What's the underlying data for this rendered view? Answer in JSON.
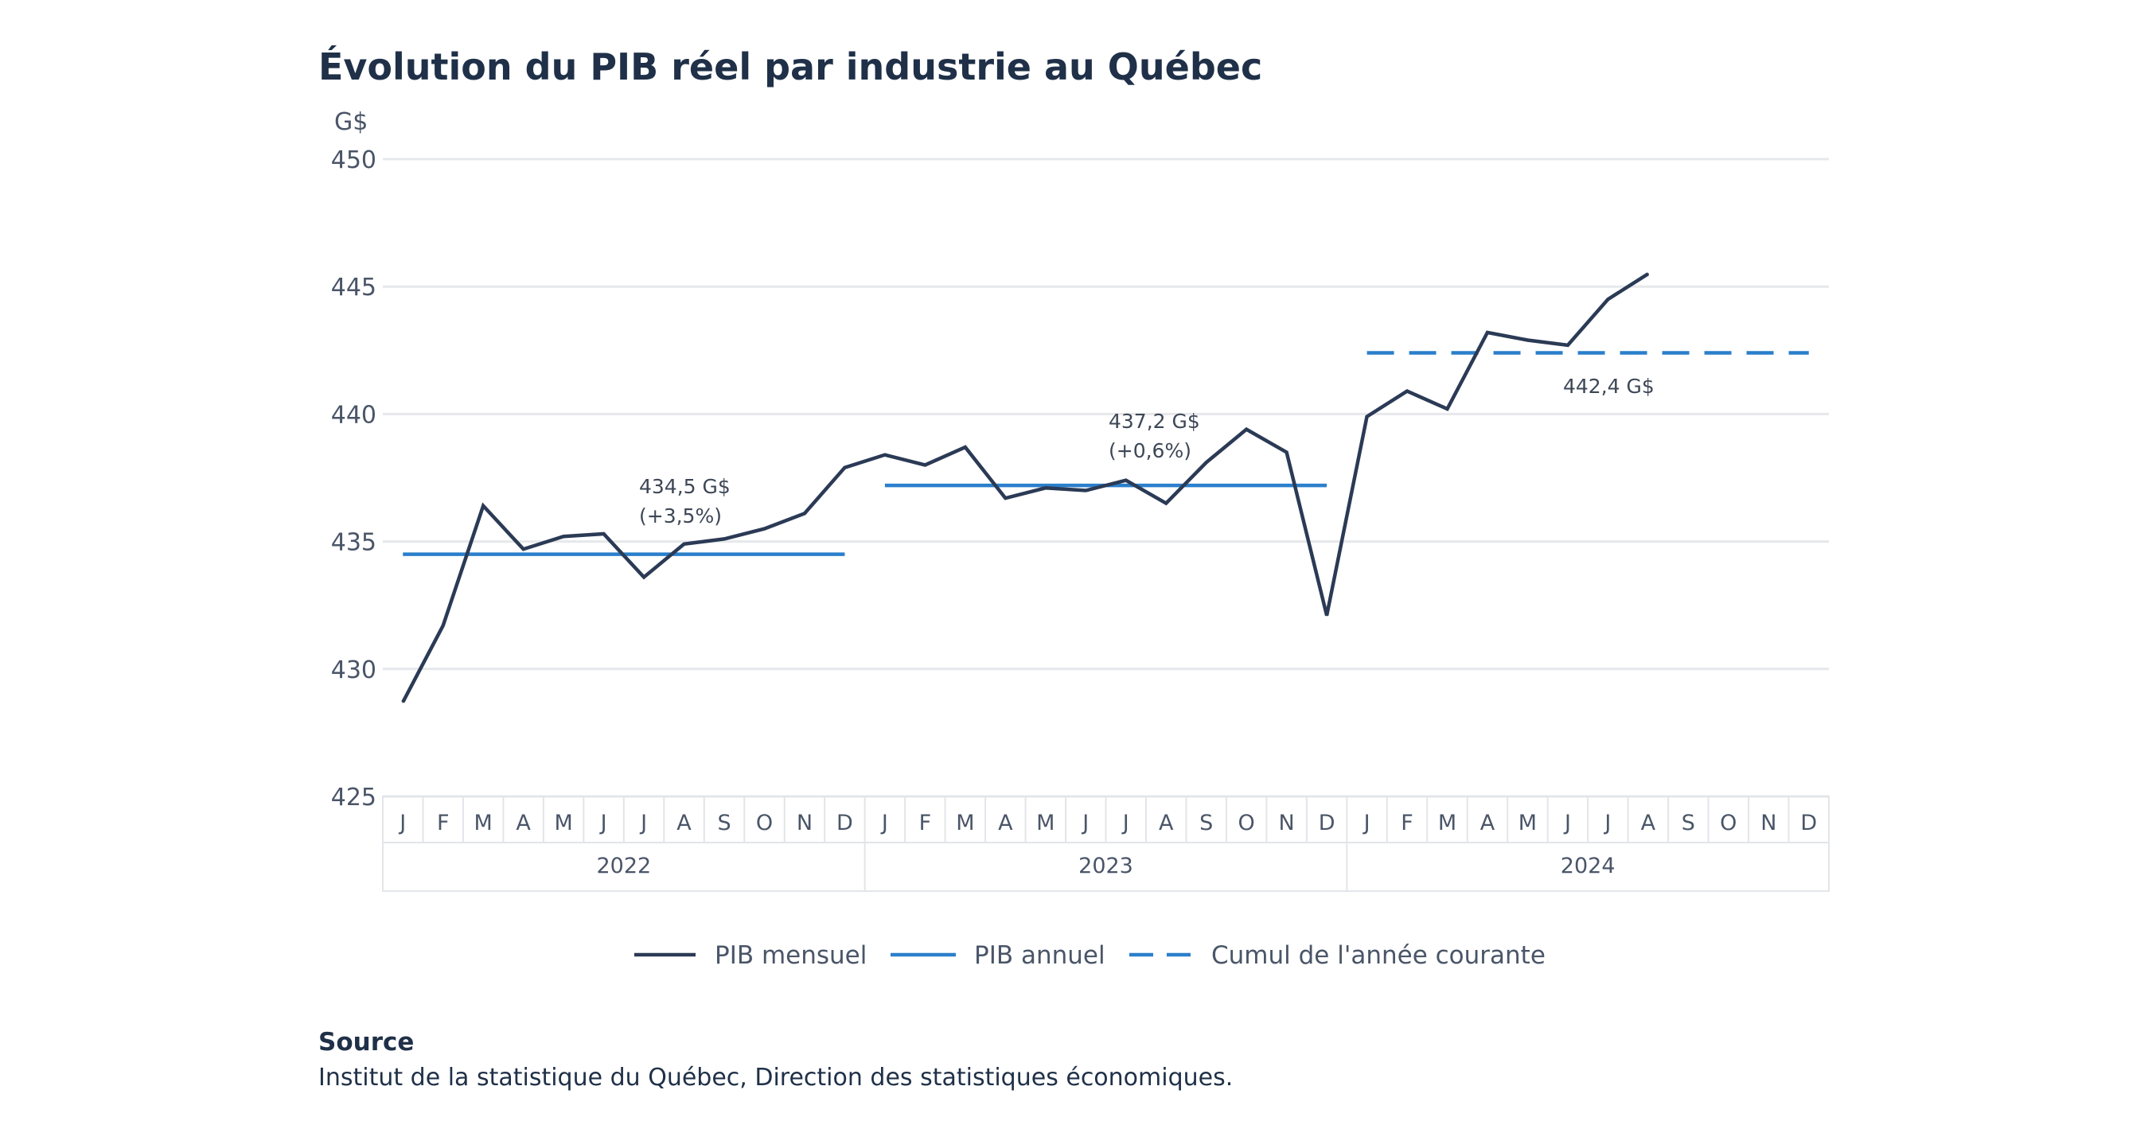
{
  "chart_data": {
    "type": "line",
    "title": "Évolution du PIB réel par industrie au Québec",
    "ylabel": "G$",
    "ylim": [
      425,
      450
    ],
    "yticks": [
      "425",
      "430",
      "435",
      "440",
      "445",
      "450"
    ],
    "grid": true,
    "legend_placement": "bottom",
    "months": [
      "J",
      "F",
      "M",
      "A",
      "M",
      "J",
      "J",
      "A",
      "S",
      "O",
      "N",
      "D"
    ],
    "years": [
      "2022",
      "2023",
      "2024"
    ],
    "series": [
      {
        "name": "PIB mensuel",
        "color": "#2b3a55",
        "style": "solid",
        "values": [
          428.7,
          431.7,
          436.4,
          434.7,
          435.2,
          435.3,
          433.6,
          434.9,
          435.1,
          435.5,
          436.1,
          437.9,
          438.4,
          438.0,
          438.7,
          436.7,
          437.1,
          437.0,
          437.4,
          436.5,
          438.1,
          439.4,
          438.5,
          432.1,
          439.9,
          440.9,
          440.2,
          443.2,
          442.9,
          442.7,
          444.5,
          445.5
        ]
      },
      {
        "name": "PIB annuel",
        "color": "#2b7fcb",
        "style": "solid",
        "values_by_year": [
          434.5,
          437.2
        ]
      },
      {
        "name": "Cumul de l'année courante",
        "color": "#2b7fcb",
        "style": "dashed",
        "values_by_year": [
          null,
          null,
          442.4
        ]
      }
    ],
    "annotations": [
      {
        "year": "2022",
        "lines": [
          "434,5 G$",
          "(+3,5%)"
        ]
      },
      {
        "year": "2023",
        "lines": [
          "437,2 G$",
          "(+0,6%)"
        ]
      },
      {
        "year": "2024",
        "lines": [
          "442,4 G$"
        ]
      }
    ]
  },
  "source": {
    "heading": "Source",
    "text": "Institut de la statistique du Québec, Direction des statistiques économiques."
  }
}
